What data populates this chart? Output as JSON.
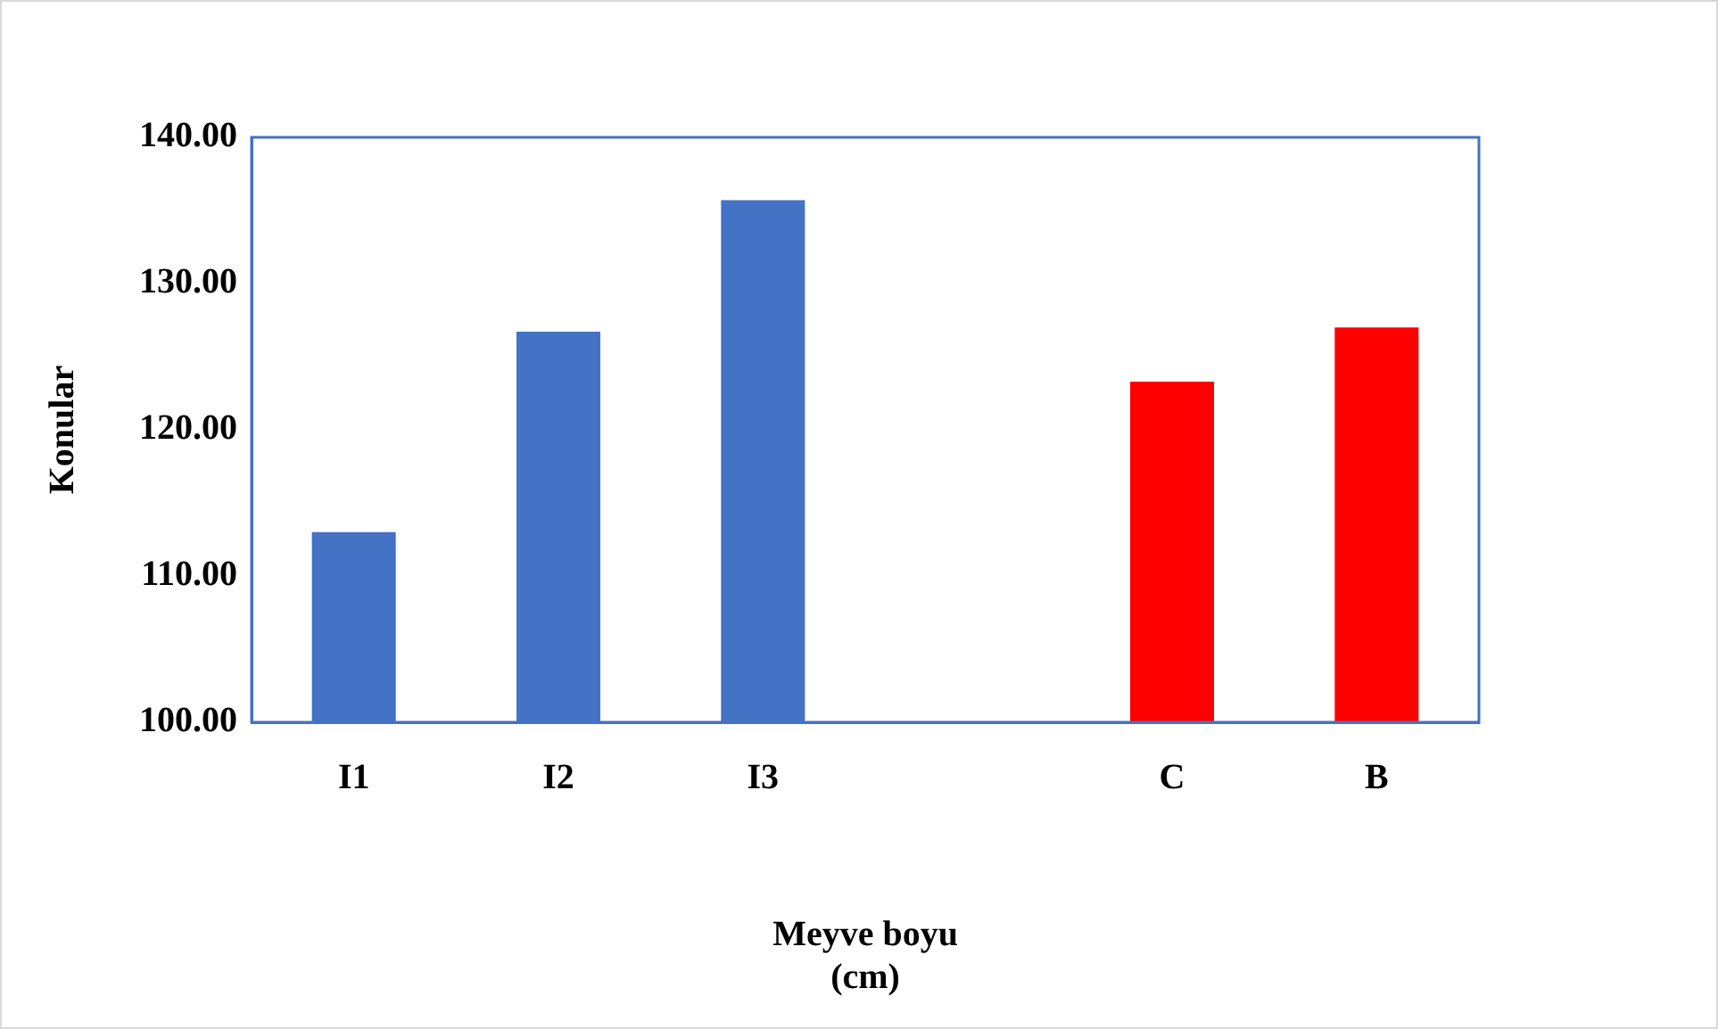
{
  "chart_data": {
    "type": "bar",
    "xlabel": "Meyve boyu\n(cm)",
    "ylabel": "Konular",
    "categories": [
      "I1",
      "I2",
      "I3",
      null,
      "C",
      "B"
    ],
    "values": [
      113.0,
      126.7,
      135.7,
      null,
      123.3,
      127.0
    ],
    "colors": [
      "#4472c4",
      "#4472c4",
      "#4472c4",
      "#4472c4",
      "#ff0000",
      "#ff0000"
    ],
    "ylim": [
      100,
      140
    ],
    "yticks": [
      {
        "value": 100,
        "label": "100.00"
      },
      {
        "value": 110,
        "label": "110.00"
      },
      {
        "value": 120,
        "label": "120.00"
      },
      {
        "value": 130,
        "label": "130.00"
      },
      {
        "value": 140,
        "label": "140.00"
      }
    ],
    "grid": false,
    "legend": false
  }
}
